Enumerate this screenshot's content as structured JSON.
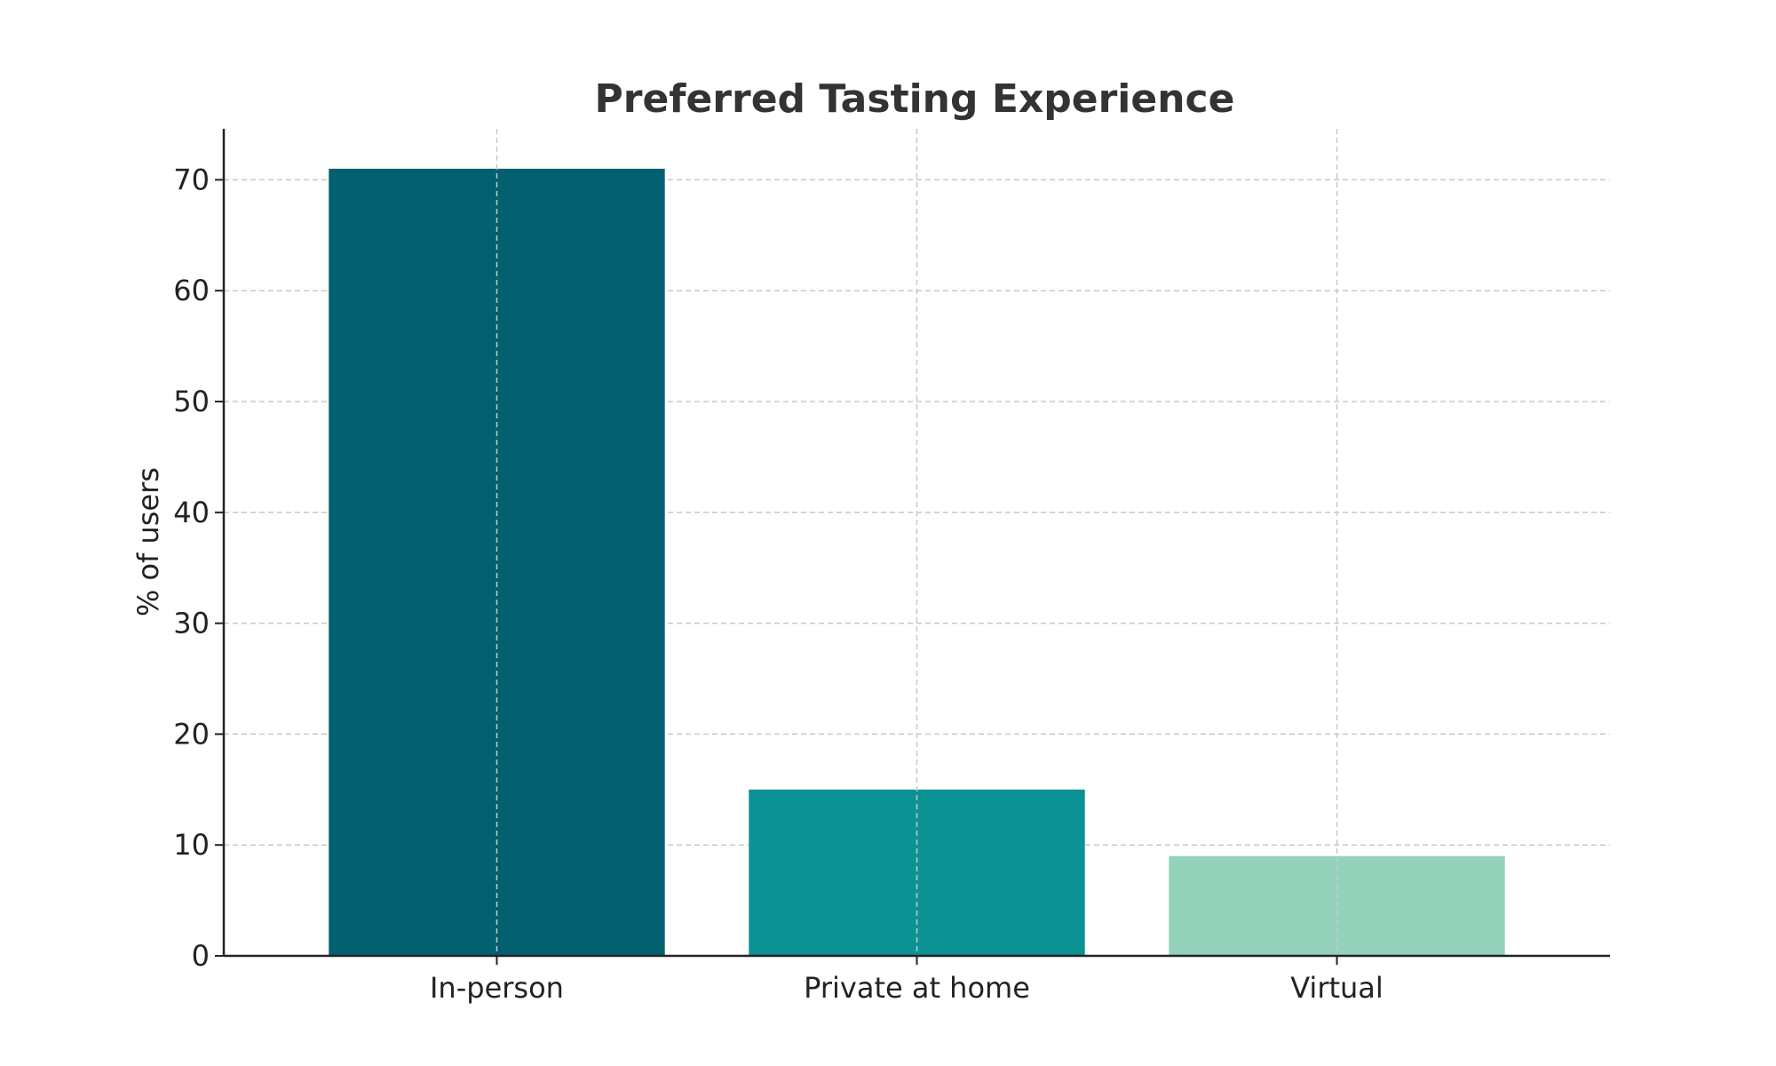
{
  "chart_data": {
    "type": "bar",
    "title": "Preferred Tasting Experience",
    "xlabel": "",
    "ylabel": "% of users",
    "categories": [
      "In-person",
      "Private at home",
      "Virtual"
    ],
    "values": [
      71,
      15,
      9
    ],
    "colors": [
      "#036071",
      "#0c9294",
      "#94d1bb"
    ],
    "ylim": [
      0,
      74.6
    ],
    "yticks": [
      0,
      10,
      20,
      30,
      40,
      50,
      60,
      70
    ],
    "grid": true,
    "legend": "none"
  }
}
